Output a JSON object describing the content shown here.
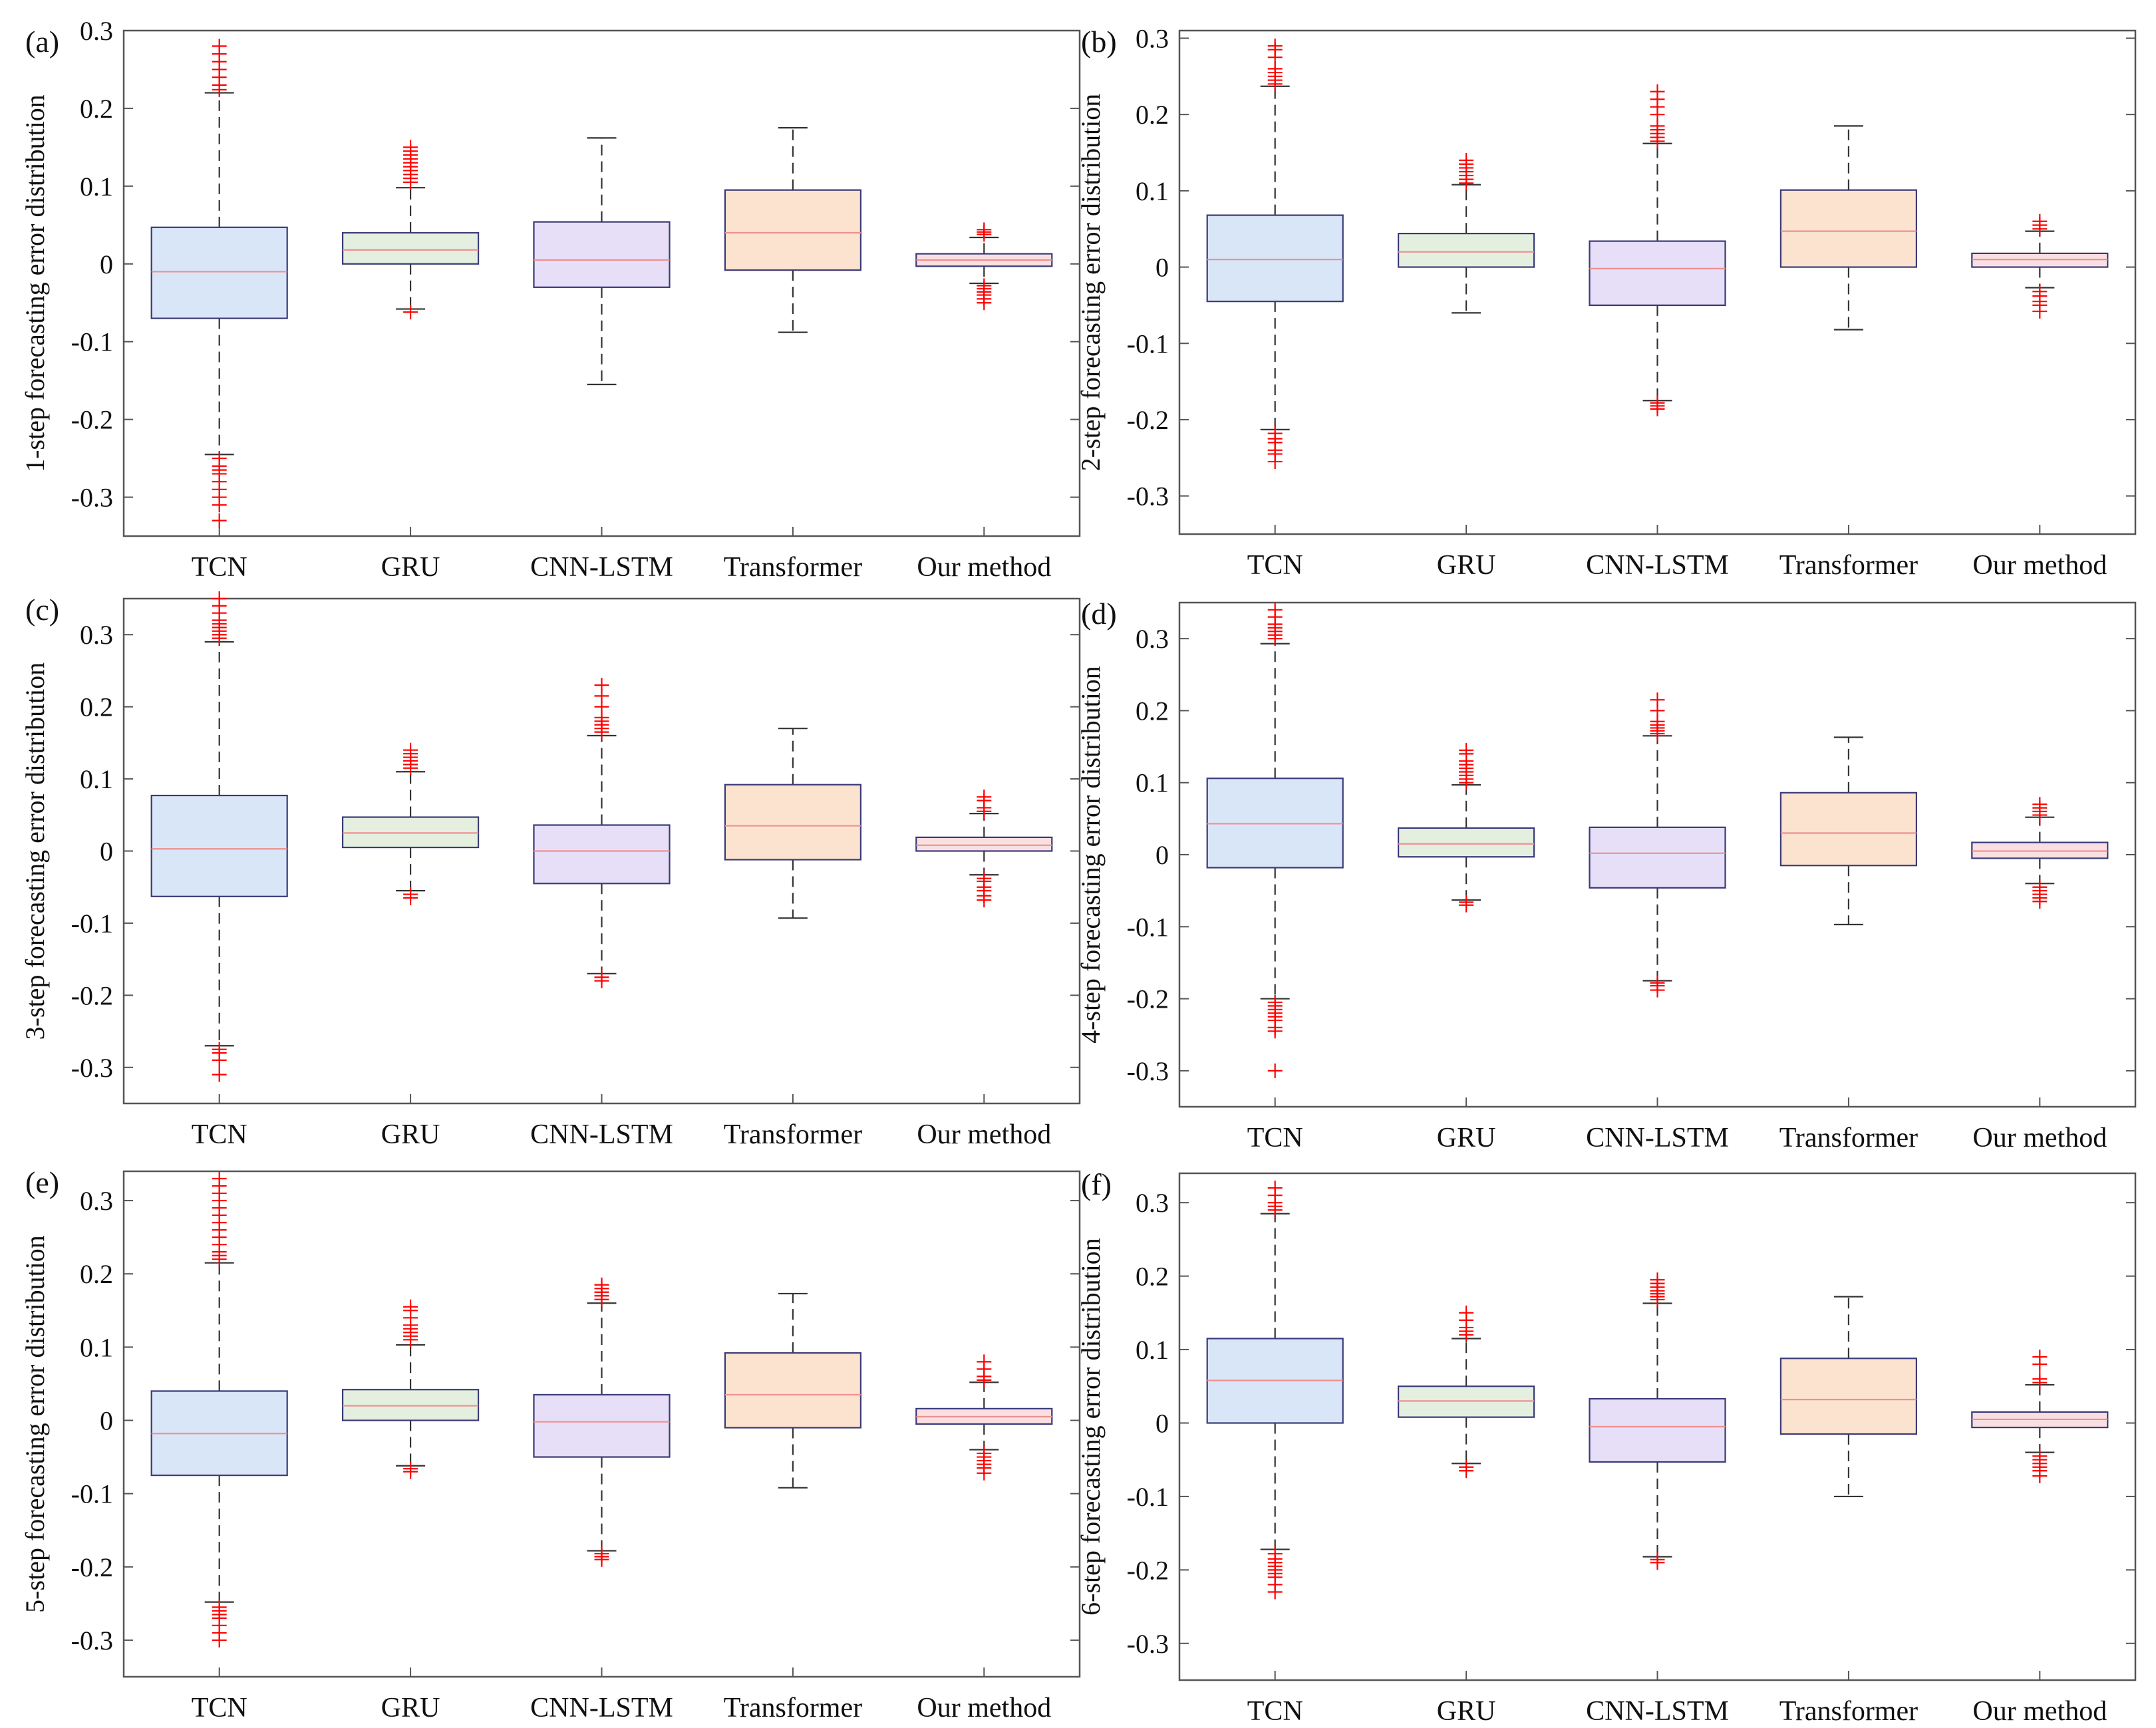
{
  "figure": {
    "categories": [
      "TCN",
      "GRU",
      "CNN-LSTM",
      "Transformer",
      "Our method"
    ],
    "colors": {
      "fills": [
        "#d9e6f8",
        "#e4efdf",
        "#e7dff8",
        "#fce3cf",
        "#f9dfe1"
      ],
      "box_stroke": "#3b3a78",
      "median": "#ee9090",
      "whisker": "#333333",
      "outlier": "#ff0000",
      "axis": "#555555"
    }
  },
  "chart_data": [
    {
      "type": "box",
      "panel_label": "(a)",
      "ylabel": "1-step forecasting error distribution",
      "ylim": [
        -0.35,
        0.3
      ],
      "yticks": [
        "-0.3",
        "-0.2",
        "-0.1",
        "0",
        "0.1",
        "0.2",
        "0.3"
      ],
      "categories": [
        "TCN",
        "GRU",
        "CNN-LSTM",
        "Transformer",
        "Our method"
      ],
      "boxes": [
        {
          "q1": -0.07,
          "median": -0.01,
          "q3": 0.047,
          "lo": -0.245,
          "hi": 0.22,
          "outliers_high": [
            0.224,
            0.23,
            0.24,
            0.25,
            0.26,
            0.27,
            0.28
          ],
          "outliers_low": [
            -0.25,
            -0.26,
            -0.265,
            -0.27,
            -0.28,
            -0.29,
            -0.3,
            -0.31,
            -0.33
          ]
        },
        {
          "q1": 0.0,
          "median": 0.018,
          "q3": 0.04,
          "lo": -0.058,
          "hi": 0.098,
          "outliers_high": [
            0.105,
            0.11,
            0.115,
            0.12,
            0.125,
            0.13,
            0.135,
            0.14,
            0.145,
            0.15
          ],
          "outliers_low": [
            -0.062
          ]
        },
        {
          "q1": -0.03,
          "median": 0.005,
          "q3": 0.054,
          "lo": -0.155,
          "hi": 0.162,
          "outliers_high": [],
          "outliers_low": []
        },
        {
          "q1": -0.008,
          "median": 0.04,
          "q3": 0.095,
          "lo": -0.088,
          "hi": 0.175,
          "outliers_high": [],
          "outliers_low": []
        },
        {
          "q1": -0.003,
          "median": 0.005,
          "q3": 0.013,
          "lo": -0.025,
          "hi": 0.034,
          "outliers_high": [
            0.038,
            0.041,
            0.044
          ],
          "outliers_low": [
            -0.028,
            -0.032,
            -0.036,
            -0.04,
            -0.045,
            -0.05
          ]
        }
      ]
    },
    {
      "type": "box",
      "panel_label": "(b)",
      "ylabel": "2-step forecasting error distribution",
      "ylim": [
        -0.35,
        0.31
      ],
      "yticks": [
        "-0.3",
        "-0.2",
        "-0.1",
        "0",
        "0.1",
        "0.2",
        "0.3"
      ],
      "categories": [
        "TCN",
        "GRU",
        "CNN-LSTM",
        "Transformer",
        "Our method"
      ],
      "boxes": [
        {
          "q1": -0.045,
          "median": 0.01,
          "q3": 0.068,
          "lo": -0.213,
          "hi": 0.237,
          "outliers_high": [
            0.24,
            0.245,
            0.25,
            0.255,
            0.26,
            0.275,
            0.285,
            0.29
          ],
          "outliers_low": [
            -0.218,
            -0.225,
            -0.23,
            -0.24,
            -0.245,
            -0.255
          ]
        },
        {
          "q1": 0.0,
          "median": 0.02,
          "q3": 0.044,
          "lo": -0.06,
          "hi": 0.108,
          "outliers_high": [
            0.11,
            0.115,
            0.12,
            0.125,
            0.13,
            0.135,
            0.14
          ],
          "outliers_low": []
        },
        {
          "q1": -0.05,
          "median": -0.002,
          "q3": 0.034,
          "lo": -0.175,
          "hi": 0.162,
          "outliers_high": [
            0.165,
            0.17,
            0.175,
            0.18,
            0.185,
            0.2,
            0.21,
            0.22,
            0.23
          ],
          "outliers_low": [
            -0.178,
            -0.182,
            -0.186
          ]
        },
        {
          "q1": 0.0,
          "median": 0.047,
          "q3": 0.101,
          "lo": -0.082,
          "hi": 0.185,
          "outliers_high": [],
          "outliers_low": []
        },
        {
          "q1": 0.0,
          "median": 0.01,
          "q3": 0.018,
          "lo": -0.027,
          "hi": 0.047,
          "outliers_high": [
            0.05,
            0.055,
            0.06
          ],
          "outliers_low": [
            -0.032,
            -0.038,
            -0.045,
            -0.05,
            -0.058
          ]
        }
      ]
    },
    {
      "type": "box",
      "panel_label": "(c)",
      "ylabel": "3-step forecasting error distribution",
      "ylim": [
        -0.35,
        0.35
      ],
      "yticks": [
        "-0.3",
        "-0.2",
        "-0.1",
        "0",
        "0.1",
        "0.2",
        "0.3"
      ],
      "categories": [
        "TCN",
        "GRU",
        "CNN-LSTM",
        "Transformer",
        "Our method"
      ],
      "boxes": [
        {
          "q1": -0.063,
          "median": 0.003,
          "q3": 0.077,
          "lo": -0.27,
          "hi": 0.29,
          "outliers_high": [
            0.295,
            0.3,
            0.305,
            0.31,
            0.315,
            0.32,
            0.33,
            0.34,
            0.35
          ],
          "outliers_low": [
            -0.275,
            -0.28,
            -0.29,
            -0.31
          ]
        },
        {
          "q1": 0.005,
          "median": 0.025,
          "q3": 0.047,
          "lo": -0.055,
          "hi": 0.11,
          "outliers_high": [
            0.115,
            0.12,
            0.125,
            0.13,
            0.135,
            0.14
          ],
          "outliers_low": [
            -0.06,
            -0.065
          ]
        },
        {
          "q1": -0.045,
          "median": 0.0,
          "q3": 0.036,
          "lo": -0.17,
          "hi": 0.16,
          "outliers_high": [
            0.165,
            0.17,
            0.175,
            0.18,
            0.185,
            0.2,
            0.215,
            0.23
          ],
          "outliers_low": [
            -0.175,
            -0.18
          ]
        },
        {
          "q1": -0.012,
          "median": 0.035,
          "q3": 0.092,
          "lo": -0.093,
          "hi": 0.17,
          "outliers_high": [],
          "outliers_low": []
        },
        {
          "q1": 0.0,
          "median": 0.008,
          "q3": 0.019,
          "lo": -0.033,
          "hi": 0.052,
          "outliers_high": [
            0.055,
            0.06,
            0.07,
            0.075
          ],
          "outliers_low": [
            -0.038,
            -0.042,
            -0.05,
            -0.055,
            -0.062,
            -0.068
          ]
        }
      ]
    },
    {
      "type": "box",
      "panel_label": "(d)",
      "ylabel": "4-step forecasting error distribution",
      "ylim": [
        -0.35,
        0.35
      ],
      "yticks": [
        "-0.3",
        "-0.2",
        "-0.1",
        "0",
        "0.1",
        "0.2",
        "0.3"
      ],
      "categories": [
        "TCN",
        "GRU",
        "CNN-LSTM",
        "Transformer",
        "Our method"
      ],
      "boxes": [
        {
          "q1": -0.018,
          "median": 0.043,
          "q3": 0.106,
          "lo": -0.2,
          "hi": 0.293,
          "outliers_high": [
            0.3,
            0.305,
            0.31,
            0.315,
            0.32,
            0.33,
            0.34
          ],
          "outliers_low": [
            -0.205,
            -0.21,
            -0.215,
            -0.22,
            -0.225,
            -0.23,
            -0.24,
            -0.245,
            -0.3
          ]
        },
        {
          "q1": -0.003,
          "median": 0.015,
          "q3": 0.037,
          "lo": -0.063,
          "hi": 0.097,
          "outliers_high": [
            0.1,
            0.105,
            0.11,
            0.115,
            0.12,
            0.125,
            0.13,
            0.14,
            0.145
          ],
          "outliers_low": [
            -0.066,
            -0.07
          ]
        },
        {
          "q1": -0.046,
          "median": 0.002,
          "q3": 0.038,
          "lo": -0.175,
          "hi": 0.165,
          "outliers_high": [
            0.168,
            0.172,
            0.176,
            0.18,
            0.185,
            0.2,
            0.215
          ],
          "outliers_low": [
            -0.178,
            -0.182,
            -0.188
          ]
        },
        {
          "q1": -0.015,
          "median": 0.03,
          "q3": 0.086,
          "lo": -0.097,
          "hi": 0.163,
          "outliers_high": [],
          "outliers_low": []
        },
        {
          "q1": -0.005,
          "median": 0.005,
          "q3": 0.017,
          "lo": -0.04,
          "hi": 0.052,
          "outliers_high": [
            0.055,
            0.06,
            0.065,
            0.07
          ],
          "outliers_low": [
            -0.045,
            -0.05,
            -0.055,
            -0.06,
            -0.065
          ]
        }
      ]
    },
    {
      "type": "box",
      "panel_label": "(e)",
      "ylabel": "5-step forecasting error distribution",
      "ylim": [
        -0.35,
        0.34
      ],
      "yticks": [
        "-0.3",
        "-0.2",
        "-0.1",
        "0",
        "0.1",
        "0.2",
        "0.3"
      ],
      "categories": [
        "TCN",
        "GRU",
        "CNN-LSTM",
        "Transformer",
        "Our method"
      ],
      "boxes": [
        {
          "q1": -0.075,
          "median": -0.018,
          "q3": 0.04,
          "lo": -0.248,
          "hi": 0.215,
          "outliers_high": [
            0.22,
            0.225,
            0.23,
            0.24,
            0.25,
            0.26,
            0.27,
            0.28,
            0.29,
            0.3,
            0.31,
            0.32,
            0.33
          ],
          "outliers_low": [
            -0.255,
            -0.26,
            -0.265,
            -0.27,
            -0.28,
            -0.29,
            -0.3
          ]
        },
        {
          "q1": 0.0,
          "median": 0.02,
          "q3": 0.042,
          "lo": -0.062,
          "hi": 0.103,
          "outliers_high": [
            0.11,
            0.115,
            0.12,
            0.125,
            0.13,
            0.14,
            0.15,
            0.155
          ],
          "outliers_low": [
            -0.066,
            -0.07
          ]
        },
        {
          "q1": -0.05,
          "median": -0.002,
          "q3": 0.035,
          "lo": -0.178,
          "hi": 0.16,
          "outliers_high": [
            0.165,
            0.17,
            0.175,
            0.18,
            0.185
          ],
          "outliers_low": [
            -0.182,
            -0.186,
            -0.19
          ]
        },
        {
          "q1": -0.01,
          "median": 0.035,
          "q3": 0.092,
          "lo": -0.092,
          "hi": 0.173,
          "outliers_high": [],
          "outliers_low": []
        },
        {
          "q1": -0.005,
          "median": 0.005,
          "q3": 0.016,
          "lo": -0.04,
          "hi": 0.052,
          "outliers_high": [
            0.055,
            0.06,
            0.07,
            0.08
          ],
          "outliers_low": [
            -0.045,
            -0.05,
            -0.055,
            -0.06,
            -0.065,
            -0.072
          ]
        }
      ]
    },
    {
      "type": "box",
      "panel_label": "(f)",
      "ylabel": "6-step forecasting error distribution",
      "ylim": [
        -0.35,
        0.34
      ],
      "yticks": [
        "-0.3",
        "-0.2",
        "-0.1",
        "0",
        "0.1",
        "0.2",
        "0.3"
      ],
      "categories": [
        "TCN",
        "GRU",
        "CNN-LSTM",
        "Transformer",
        "Our method"
      ],
      "boxes": [
        {
          "q1": 0.0,
          "median": 0.058,
          "q3": 0.115,
          "lo": -0.172,
          "hi": 0.285,
          "outliers_high": [
            0.29,
            0.295,
            0.3,
            0.31,
            0.32
          ],
          "outliers_low": [
            -0.178,
            -0.185,
            -0.19,
            -0.195,
            -0.2,
            -0.205,
            -0.21,
            -0.22,
            -0.23
          ]
        },
        {
          "q1": 0.008,
          "median": 0.03,
          "q3": 0.05,
          "lo": -0.055,
          "hi": 0.115,
          "outliers_high": [
            0.12,
            0.125,
            0.13,
            0.14,
            0.15
          ],
          "outliers_low": [
            -0.06,
            -0.065
          ]
        },
        {
          "q1": -0.053,
          "median": -0.005,
          "q3": 0.033,
          "lo": -0.182,
          "hi": 0.163,
          "outliers_high": [
            0.168,
            0.172,
            0.176,
            0.18,
            0.185,
            0.19,
            0.195
          ],
          "outliers_low": [
            -0.186,
            -0.19
          ]
        },
        {
          "q1": -0.015,
          "median": 0.032,
          "q3": 0.088,
          "lo": -0.1,
          "hi": 0.172,
          "outliers_high": [],
          "outliers_low": []
        },
        {
          "q1": -0.006,
          "median": 0.005,
          "q3": 0.015,
          "lo": -0.04,
          "hi": 0.052,
          "outliers_high": [
            0.055,
            0.06,
            0.08,
            0.09
          ],
          "outliers_low": [
            -0.045,
            -0.05,
            -0.055,
            -0.06,
            -0.065,
            -0.072
          ]
        }
      ]
    }
  ]
}
